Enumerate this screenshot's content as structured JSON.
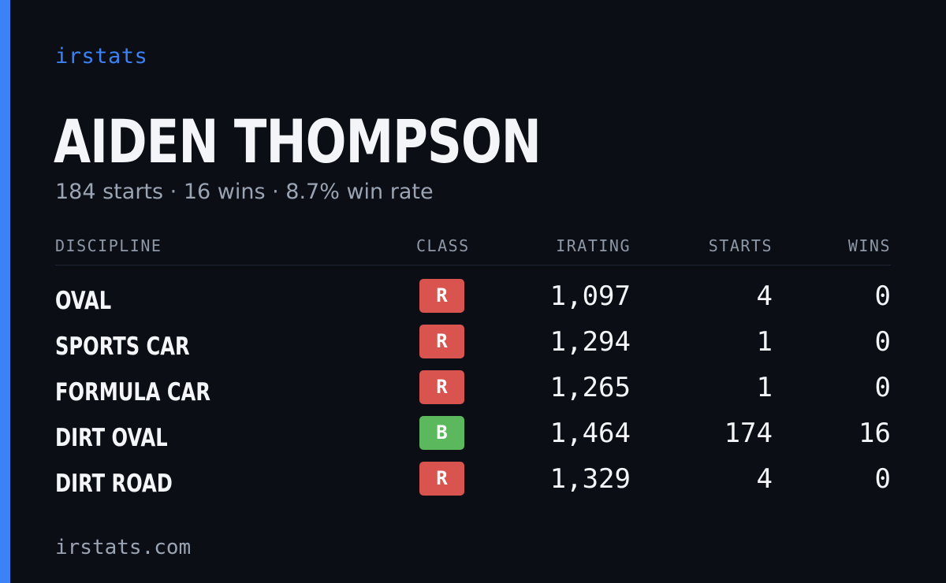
{
  "brand": "irstats",
  "driver": {
    "name": "AIDEN THOMPSON",
    "summary": "184 starts · 16 wins · 8.7% win rate"
  },
  "colors": {
    "accent": "#3b82f6",
    "background": "#0b0e15",
    "class_r": "#d9534f",
    "class_b": "#5cb85c"
  },
  "table": {
    "headers": {
      "discipline": "DISCIPLINE",
      "class": "CLASS",
      "irating": "IRATING",
      "starts": "STARTS",
      "wins": "WINS"
    },
    "rows": [
      {
        "discipline": "OVAL",
        "class": "R",
        "class_color": "#d9534f",
        "irating": "1,097",
        "starts": "4",
        "wins": "0"
      },
      {
        "discipline": "SPORTS CAR",
        "class": "R",
        "class_color": "#d9534f",
        "irating": "1,294",
        "starts": "1",
        "wins": "0"
      },
      {
        "discipline": "FORMULA CAR",
        "class": "R",
        "class_color": "#d9534f",
        "irating": "1,265",
        "starts": "1",
        "wins": "0"
      },
      {
        "discipline": "DIRT OVAL",
        "class": "B",
        "class_color": "#5cb85c",
        "irating": "1,464",
        "starts": "174",
        "wins": "16"
      },
      {
        "discipline": "DIRT ROAD",
        "class": "R",
        "class_color": "#d9534f",
        "irating": "1,329",
        "starts": "4",
        "wins": "0"
      }
    ]
  },
  "footer": "irstats.com"
}
